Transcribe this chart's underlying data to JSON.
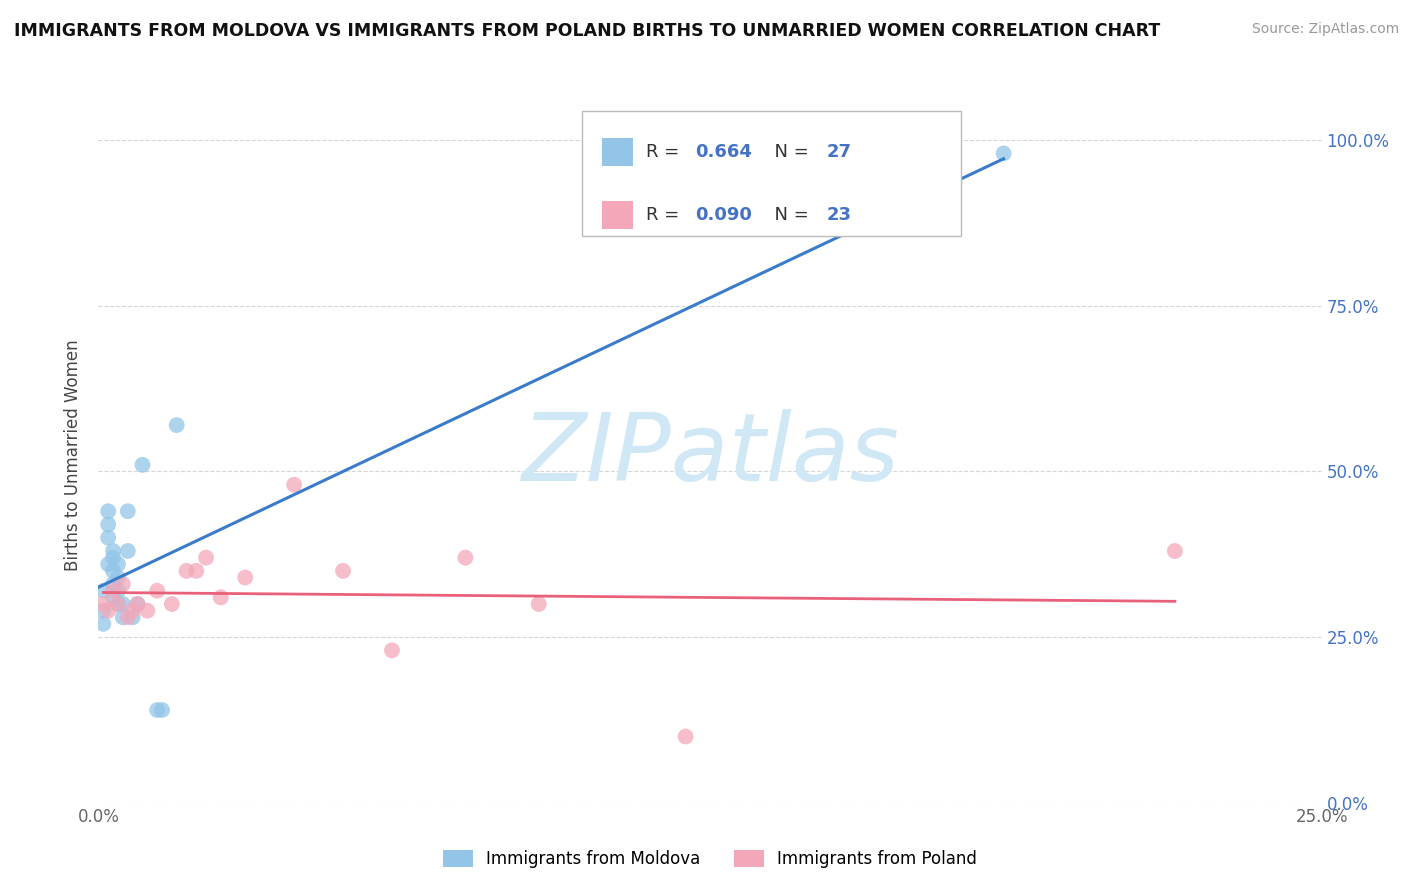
{
  "title": "IMMIGRANTS FROM MOLDOVA VS IMMIGRANTS FROM POLAND BIRTHS TO UNMARRIED WOMEN CORRELATION CHART",
  "source": "Source: ZipAtlas.com",
  "ylabel": "Births to Unmarried Women",
  "xlim": [
    0.0,
    0.25
  ],
  "ylim": [
    0.0,
    1.05
  ],
  "xtick_positions": [
    0.0,
    0.05,
    0.1,
    0.15,
    0.2,
    0.25
  ],
  "xtick_labels": [
    "0.0%",
    "",
    "",
    "",
    "",
    "25.0%"
  ],
  "ytick_positions": [
    0.0,
    0.25,
    0.5,
    0.75,
    1.0
  ],
  "ytick_labels_right": [
    "0.0%",
    "25.0%",
    "50.0%",
    "75.0%",
    "100.0%"
  ],
  "legend1_label": "Immigrants from Moldova",
  "legend2_label": "Immigrants from Poland",
  "R_moldova": "0.664",
  "N_moldova": "27",
  "R_poland": "0.090",
  "N_poland": "23",
  "color_moldova": "#92C5E8",
  "color_poland": "#F4A7B9",
  "color_trendline_moldova": "#3A7CC9",
  "color_trendline_poland": "#E8607A",
  "moldova_x": [
    0.001,
    0.001,
    0.001,
    0.002,
    0.002,
    0.002,
    0.002,
    0.003,
    0.003,
    0.003,
    0.003,
    0.003,
    0.004,
    0.004,
    0.004,
    0.004,
    0.005,
    0.005,
    0.006,
    0.006,
    0.007,
    0.008,
    0.009,
    0.012,
    0.013,
    0.016,
    0.185
  ],
  "moldova_y": [
    0.32,
    0.29,
    0.27,
    0.36,
    0.4,
    0.42,
    0.44,
    0.31,
    0.33,
    0.35,
    0.37,
    0.38,
    0.3,
    0.32,
    0.34,
    0.36,
    0.28,
    0.3,
    0.38,
    0.44,
    0.28,
    0.3,
    0.51,
    0.14,
    0.14,
    0.57,
    0.98
  ],
  "poland_x": [
    0.001,
    0.002,
    0.003,
    0.004,
    0.005,
    0.006,
    0.007,
    0.008,
    0.01,
    0.012,
    0.015,
    0.018,
    0.02,
    0.022,
    0.025,
    0.03,
    0.04,
    0.05,
    0.06,
    0.075,
    0.09,
    0.12,
    0.22
  ],
  "poland_y": [
    0.3,
    0.29,
    0.32,
    0.3,
    0.33,
    0.28,
    0.29,
    0.3,
    0.29,
    0.32,
    0.3,
    0.35,
    0.35,
    0.37,
    0.31,
    0.34,
    0.48,
    0.35,
    0.23,
    0.37,
    0.3,
    0.1,
    0.38
  ],
  "background_color": "#FFFFFF",
  "grid_color": "#CCCCCC",
  "watermark_text": "ZIPatlas",
  "watermark_color": "#D0E8F5",
  "trendline_x_start_moldova": 0.0,
  "trendline_x_end_moldova": 0.185,
  "trendline_x_start_poland": 0.001,
  "trendline_x_end_poland": 0.22
}
